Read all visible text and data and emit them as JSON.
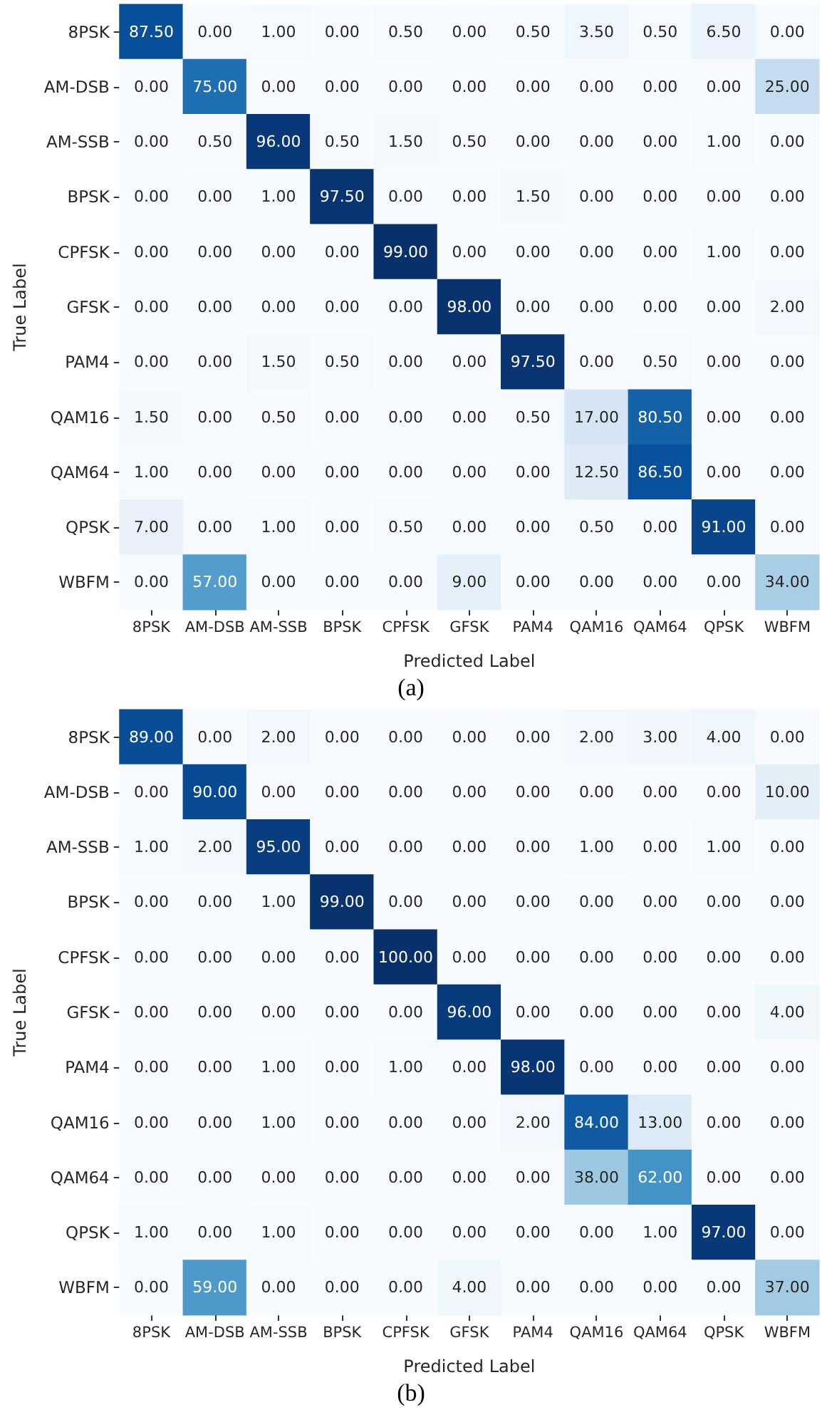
{
  "chart_data": [
    {
      "type": "heatmap",
      "xlabel": "Predicted Label",
      "ylabel": "True Label",
      "annotations": [
        "(a)"
      ],
      "data_labels": true,
      "categories": [
        "8PSK",
        "AM-DSB",
        "AM-SSB",
        "BPSK",
        "CPFSK",
        "GFSK",
        "PAM4",
        "QAM16",
        "QAM64",
        "QPSK",
        "WBFM"
      ],
      "y_categories": [
        "8PSK",
        "AM-DSB",
        "AM-SSB",
        "BPSK",
        "CPFSK",
        "GFSK",
        "PAM4",
        "QAM16",
        "QAM64",
        "QPSK",
        "WBFM"
      ],
      "cells": [
        [
          87.5,
          0,
          1,
          0,
          0.5,
          0,
          0.5,
          3.5,
          0.5,
          6.5,
          0
        ],
        [
          0,
          75,
          0,
          0,
          0,
          0,
          0,
          0,
          0,
          0,
          25
        ],
        [
          0,
          0.5,
          96,
          0.5,
          1.5,
          0.5,
          0,
          0,
          0,
          1,
          0
        ],
        [
          0,
          0,
          1,
          97.5,
          0,
          0,
          1.5,
          0,
          0,
          0,
          0
        ],
        [
          0,
          0,
          0,
          0,
          99,
          0,
          0,
          0,
          0,
          1,
          0
        ],
        [
          0,
          0,
          0,
          0,
          0,
          98,
          0,
          0,
          0,
          0,
          2
        ],
        [
          0,
          0,
          1.5,
          0.5,
          0,
          0,
          97.5,
          0,
          0.5,
          0,
          0
        ],
        [
          1.5,
          0,
          0.5,
          0,
          0,
          0,
          0.5,
          17,
          80.5,
          0,
          0
        ],
        [
          1,
          0,
          0,
          0,
          0,
          0,
          0,
          12.5,
          86.5,
          0,
          0
        ],
        [
          7,
          0,
          1,
          0,
          0.5,
          0,
          0,
          0.5,
          0,
          91,
          0
        ],
        [
          0,
          57,
          0,
          0,
          0,
          9,
          0,
          0,
          0,
          0,
          34
        ]
      ],
      "cell_labels": [
        [
          "87.50",
          "0.00",
          "1.00",
          "0.00",
          "0.50",
          "0.00",
          "0.50",
          "3.50",
          "0.50",
          "6.50",
          "0.00"
        ],
        [
          "0.00",
          "75.00",
          "0.00",
          "0.00",
          "0.00",
          "0.00",
          "0.00",
          "0.00",
          "0.00",
          "0.00",
          "25.00"
        ],
        [
          "0.00",
          "0.50",
          "96.00",
          "0.50",
          "1.50",
          "0.50",
          "0.00",
          "0.00",
          "0.00",
          "1.00",
          "0.00"
        ],
        [
          "0.00",
          "0.00",
          "1.00",
          "97.50",
          "0.00",
          "0.00",
          "1.50",
          "0.00",
          "0.00",
          "0.00",
          "0.00"
        ],
        [
          "0.00",
          "0.00",
          "0.00",
          "0.00",
          "99.00",
          "0.00",
          "0.00",
          "0.00",
          "0.00",
          "1.00",
          "0.00"
        ],
        [
          "0.00",
          "0.00",
          "0.00",
          "0.00",
          "0.00",
          "98.00",
          "0.00",
          "0.00",
          "0.00",
          "0.00",
          "2.00"
        ],
        [
          "0.00",
          "0.00",
          "1.50",
          "0.50",
          "0.00",
          "0.00",
          "97.50",
          "0.00",
          "0.50",
          "0.00",
          "0.00"
        ],
        [
          "1.50",
          "0.00",
          "0.50",
          "0.00",
          "0.00",
          "0.00",
          "0.50",
          "17.00",
          "80.50",
          "0.00",
          "0.00"
        ],
        [
          "1.00",
          "0.00",
          "0.00",
          "0.00",
          "0.00",
          "0.00",
          "0.00",
          "12.50",
          "86.50",
          "0.00",
          "0.00"
        ],
        [
          "7.00",
          "0.00",
          "1.00",
          "0.00",
          "0.50",
          "0.00",
          "0.00",
          "0.50",
          "0.00",
          "91.00",
          "0.00"
        ],
        [
          "0.00",
          "57.00",
          "0.00",
          "0.00",
          "0.00",
          "9.00",
          "0.00",
          "0.00",
          "0.00",
          "0.00",
          "34.00"
        ]
      ]
    },
    {
      "type": "heatmap",
      "xlabel": "Predicted Label",
      "ylabel": "True Label",
      "annotations": [
        "(b)"
      ],
      "data_labels": true,
      "categories": [
        "8PSK",
        "AM-DSB",
        "AM-SSB",
        "BPSK",
        "CPFSK",
        "GFSK",
        "PAM4",
        "QAM16",
        "QAM64",
        "QPSK",
        "WBFM"
      ],
      "y_categories": [
        "8PSK",
        "AM-DSB",
        "AM-SSB",
        "BPSK",
        "CPFSK",
        "GFSK",
        "PAM4",
        "QAM16",
        "QAM64",
        "QPSK",
        "WBFM"
      ],
      "cells": [
        [
          89,
          0,
          2,
          0,
          0,
          0,
          0,
          2,
          3,
          4,
          0
        ],
        [
          0,
          90,
          0,
          0,
          0,
          0,
          0,
          0,
          0,
          0,
          10
        ],
        [
          1,
          2,
          95,
          0,
          0,
          0,
          0,
          1,
          0,
          1,
          0
        ],
        [
          0,
          0,
          1,
          99,
          0,
          0,
          0,
          0,
          0,
          0,
          0
        ],
        [
          0,
          0,
          0,
          0,
          100,
          0,
          0,
          0,
          0,
          0,
          0
        ],
        [
          0,
          0,
          0,
          0,
          0,
          96,
          0,
          0,
          0,
          0,
          4
        ],
        [
          0,
          0,
          1,
          0,
          1,
          0,
          98,
          0,
          0,
          0,
          0
        ],
        [
          0,
          0,
          1,
          0,
          0,
          0,
          2,
          84,
          13,
          0,
          0
        ],
        [
          0,
          0,
          0,
          0,
          0,
          0,
          0,
          38,
          62,
          0,
          0
        ],
        [
          1,
          0,
          1,
          0,
          0,
          0,
          0,
          0,
          1,
          97,
          0
        ],
        [
          0,
          59,
          0,
          0,
          0,
          4,
          0,
          0,
          0,
          0,
          37
        ]
      ],
      "cell_labels": [
        [
          "89.00",
          "0.00",
          "2.00",
          "0.00",
          "0.00",
          "0.00",
          "0.00",
          "2.00",
          "3.00",
          "4.00",
          "0.00"
        ],
        [
          "0.00",
          "90.00",
          "0.00",
          "0.00",
          "0.00",
          "0.00",
          "0.00",
          "0.00",
          "0.00",
          "0.00",
          "10.00"
        ],
        [
          "1.00",
          "2.00",
          "95.00",
          "0.00",
          "0.00",
          "0.00",
          "0.00",
          "1.00",
          "0.00",
          "1.00",
          "0.00"
        ],
        [
          "0.00",
          "0.00",
          "1.00",
          "99.00",
          "0.00",
          "0.00",
          "0.00",
          "0.00",
          "0.00",
          "0.00",
          "0.00"
        ],
        [
          "0.00",
          "0.00",
          "0.00",
          "0.00",
          "100.00",
          "0.00",
          "0.00",
          "0.00",
          "0.00",
          "0.00",
          "0.00"
        ],
        [
          "0.00",
          "0.00",
          "0.00",
          "0.00",
          "0.00",
          "96.00",
          "0.00",
          "0.00",
          "0.00",
          "0.00",
          "4.00"
        ],
        [
          "0.00",
          "0.00",
          "1.00",
          "0.00",
          "1.00",
          "0.00",
          "98.00",
          "0.00",
          "0.00",
          "0.00",
          "0.00"
        ],
        [
          "0.00",
          "0.00",
          "1.00",
          "0.00",
          "0.00",
          "0.00",
          "2.00",
          "84.00",
          "13.00",
          "0.00",
          "0.00"
        ],
        [
          "0.00",
          "0.00",
          "0.00",
          "0.00",
          "0.00",
          "0.00",
          "0.00",
          "38.00",
          "62.00",
          "0.00",
          "0.00"
        ],
        [
          "1.00",
          "0.00",
          "1.00",
          "0.00",
          "0.00",
          "0.00",
          "0.00",
          "0.00",
          "1.00",
          "97.00",
          "0.00"
        ],
        [
          "0.00",
          "59.00",
          "0.00",
          "0.00",
          "0.00",
          "4.00",
          "0.00",
          "0.00",
          "0.00",
          "0.00",
          "37.00"
        ]
      ]
    }
  ]
}
